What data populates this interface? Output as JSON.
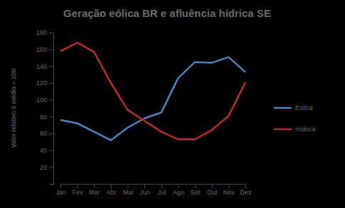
{
  "chart_data": {
    "type": "line",
    "title": "Geração eólica BR e afluência hídrica SE",
    "y_label": "Valor relativo à média = 100",
    "categories": [
      "Jan",
      "Fev",
      "Mar",
      "Abr",
      "Mai",
      "Jun",
      "Jul",
      "Ago",
      "Set",
      "Out",
      "Nov",
      "Dez"
    ],
    "series": [
      {
        "name": "Eólica",
        "color": "#4f81bd",
        "values": [
          76,
          72,
          62,
          52,
          67,
          78,
          85,
          126,
          145,
          144,
          151,
          133
        ]
      },
      {
        "name": "Hídrica",
        "color": "#c0282d",
        "values": [
          158,
          168,
          157,
          120,
          88,
          75,
          62,
          53,
          53,
          64,
          81,
          121
        ]
      }
    ],
    "ylim": [
      0,
      180
    ],
    "yticks": [
      20,
      40,
      60,
      80,
      100,
      120,
      140,
      160,
      180
    ],
    "grid": false,
    "legend": "right"
  }
}
